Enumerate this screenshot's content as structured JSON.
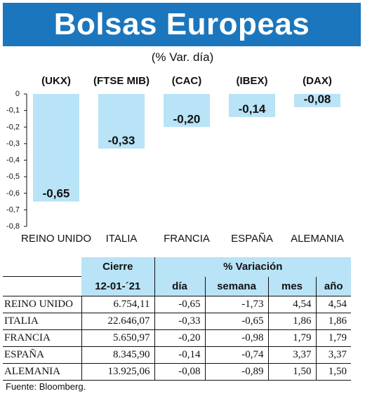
{
  "header": {
    "title": "Bolsas Europeas",
    "subtitle": "(% Var. día)"
  },
  "chart_data": {
    "type": "bar",
    "title": "Bolsas Europeas",
    "subtitle": "(% Var. día)",
    "categories": [
      "REINO UNIDO",
      "ITALIA",
      "FRANCIA",
      "ESPAÑA",
      "ALEMANIA"
    ],
    "index_labels": [
      "(UKX)",
      "(FTSE MIB)",
      "(CAC)",
      "(IBEX)",
      "(DAX)"
    ],
    "values": [
      -0.65,
      -0.33,
      -0.2,
      -0.14,
      -0.08
    ],
    "value_labels": [
      "-0,65",
      "-0,33",
      "-0,20",
      "-0,14",
      "-0,08"
    ],
    "ylim": [
      -0.8,
      0
    ],
    "yticks": [
      "0",
      "-0,1",
      "-0,2",
      "-0,3",
      "-0,4",
      "-0,5",
      "-0,6",
      "-0,7",
      "-0,8"
    ],
    "bar_color": "#b9e3f6",
    "grid": false
  },
  "table": {
    "group_headers": {
      "cierre": "Cierre",
      "variacion": "% Variación"
    },
    "sub_headers": {
      "date": "12-01-´21",
      "dia": "día",
      "semana": "semana",
      "mes": "mes",
      "anio": "año"
    },
    "rows": [
      {
        "name": "REINO UNIDO",
        "cierre": "6.754,11",
        "dia": "-0,65",
        "semana": "-1,73",
        "mes": "4,54",
        "anio": "4,54"
      },
      {
        "name": "ITALIA",
        "cierre": "22.646,07",
        "dia": "-0,33",
        "semana": "-0,65",
        "mes": "1,86",
        "anio": "1,86"
      },
      {
        "name": "FRANCIA",
        "cierre": "5.650,97",
        "dia": "-0,20",
        "semana": "-0,98",
        "mes": "1,79",
        "anio": "1,79"
      },
      {
        "name": "ESPAÑA",
        "cierre": "8.345,90",
        "dia": "-0,14",
        "semana": "-0,74",
        "mes": "3,37",
        "anio": "3,37"
      },
      {
        "name": "ALEMANIA",
        "cierre": "13.925,06",
        "dia": "-0,08",
        "semana": "-0,89",
        "mes": "1,50",
        "anio": "1,50"
      }
    ]
  },
  "footer": {
    "source": "Fuente: Bloomberg."
  },
  "colors": {
    "banner": "#1b76bd",
    "accent_light": "#b9e3f6"
  }
}
